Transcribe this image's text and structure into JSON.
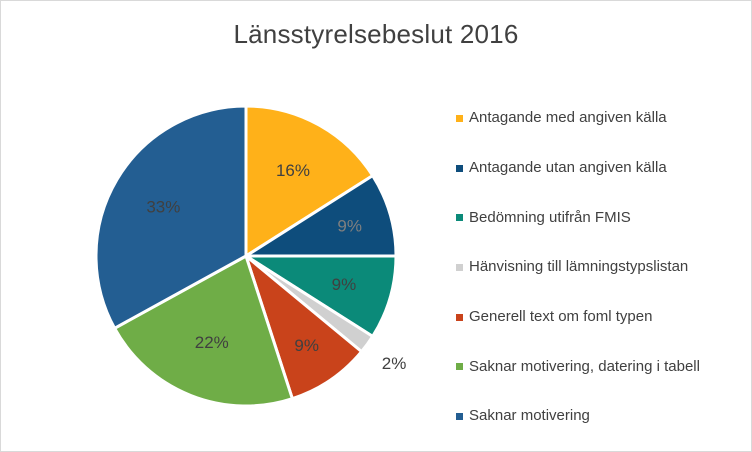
{
  "chart_data": {
    "type": "pie",
    "title": "Länsstyrelsebeslut 2016",
    "categories": [
      "Antagande med angiven källa",
      "Antagande utan angiven källa",
      "Bedömning utifrån FMIS",
      "Hänvisning till lämningstypslistan",
      "Generell text om foml typen",
      "Saknar motivering, datering i tabell",
      "Saknar motivering"
    ],
    "values": [
      16,
      9,
      9,
      2,
      9,
      22,
      33
    ],
    "data_labels": [
      "16%",
      "9%",
      "9%",
      "2%",
      "9%",
      "22%",
      "33%"
    ],
    "colors": [
      "#FFB119",
      "#0E4D7C",
      "#0B8A79",
      "#D0D0D0",
      "#C9431B",
      "#6FAD47",
      "#235E92"
    ],
    "label_colors": [
      "#404040",
      "#7F7F7F",
      "#404040",
      "#404040",
      "#404040",
      "#404040",
      "#404040"
    ],
    "legend": "right"
  }
}
